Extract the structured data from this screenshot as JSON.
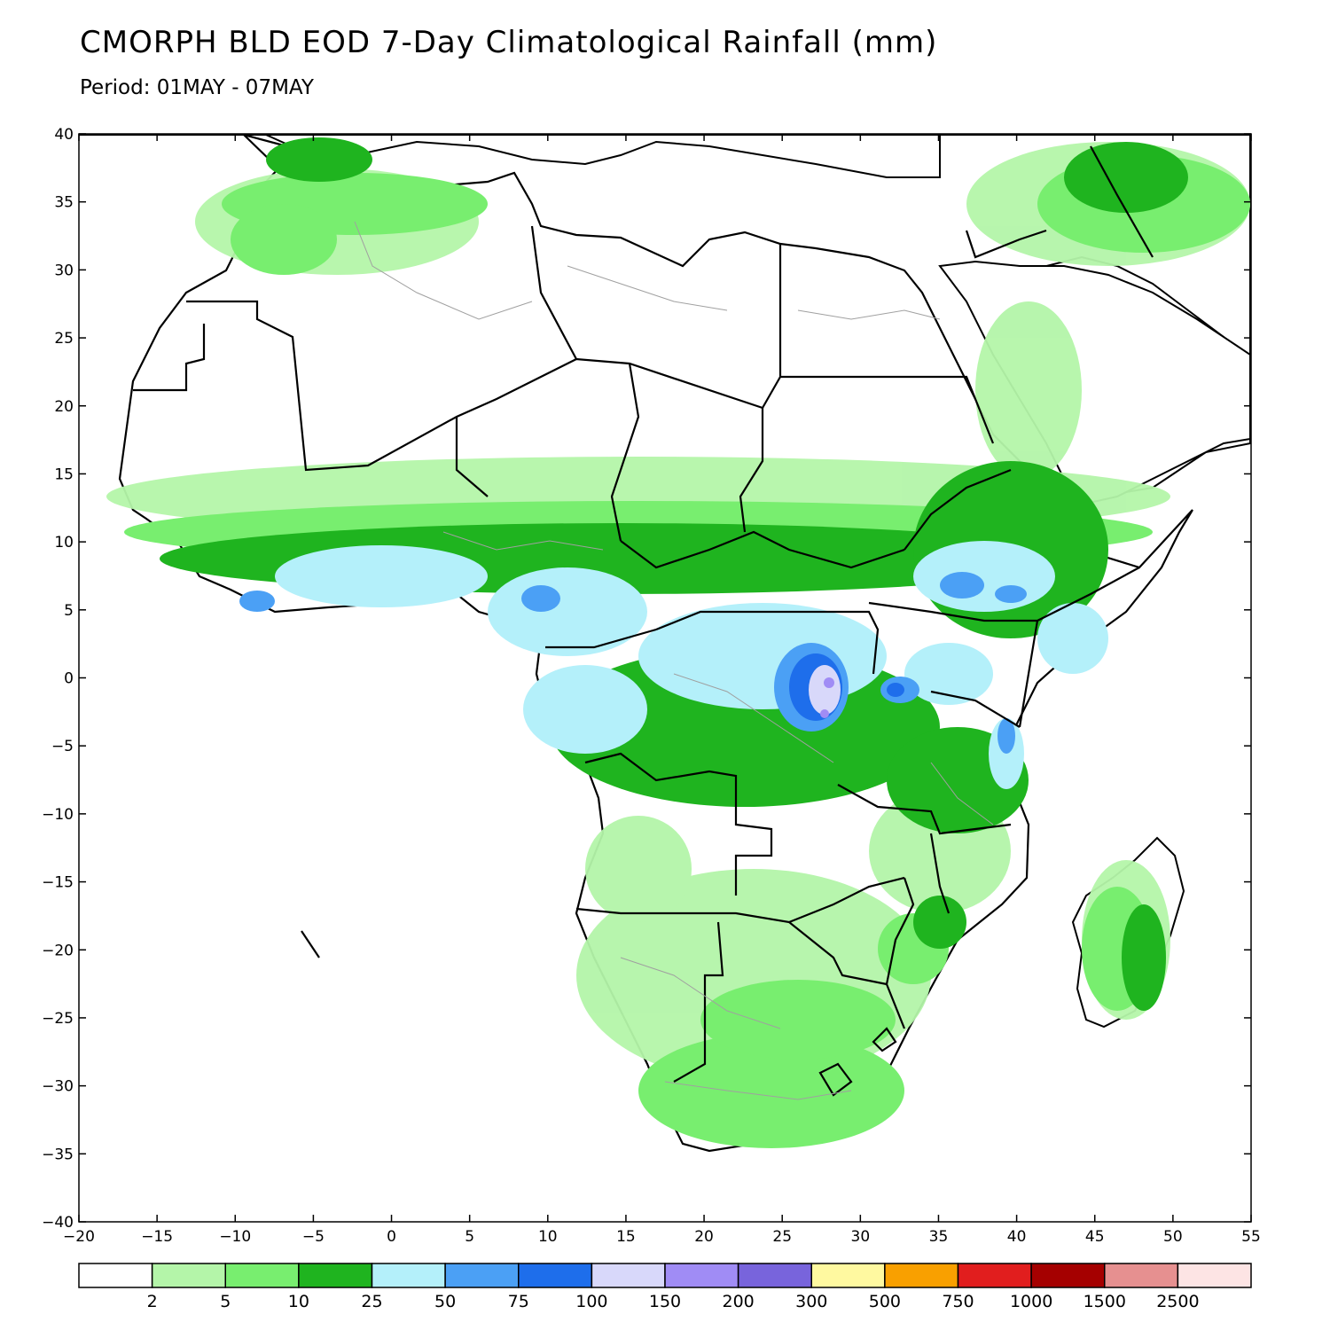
{
  "title": "CMORPH BLD EOD 7-Day Climatological Rainfall (mm)",
  "subtitle": "Period: 01MAY - 07MAY",
  "map": {
    "projection": "lat-lon",
    "lon_range": [
      -20,
      55
    ],
    "lat_range": [
      -40,
      40
    ],
    "lon_ticks": [
      "−20",
      "−15",
      "−10",
      "−5",
      "0",
      "5",
      "10",
      "15",
      "20",
      "25",
      "30",
      "35",
      "40",
      "45",
      "50",
      "55"
    ],
    "lat_ticks": [
      "40",
      "35",
      "30",
      "25",
      "20",
      "15",
      "10",
      "5",
      "0",
      "−5",
      "−10",
      "−15",
      "−20",
      "−25",
      "−30",
      "−35",
      "−40"
    ],
    "ocean_color": "#ffffff",
    "coastline_color": "#000000",
    "country_border_color": "#000000",
    "admin_border_color": "#a0a0a0"
  },
  "colorbar": {
    "thresholds": [
      "2",
      "5",
      "10",
      "25",
      "50",
      "75",
      "100",
      "150",
      "200",
      "300",
      "500",
      "750",
      "1000",
      "1500",
      "2500"
    ],
    "colors": [
      "#ffffff",
      "#b4f5a9",
      "#78ee6f",
      "#1fb41f",
      "#b4f0fa",
      "#4ba0f5",
      "#1e6eeb",
      "#d8d8fa",
      "#a08cf5",
      "#7864dc",
      "#fff9a0",
      "#f9a000",
      "#e11e1e",
      "#a50000",
      "#e69090",
      "#fde4e4"
    ]
  }
}
